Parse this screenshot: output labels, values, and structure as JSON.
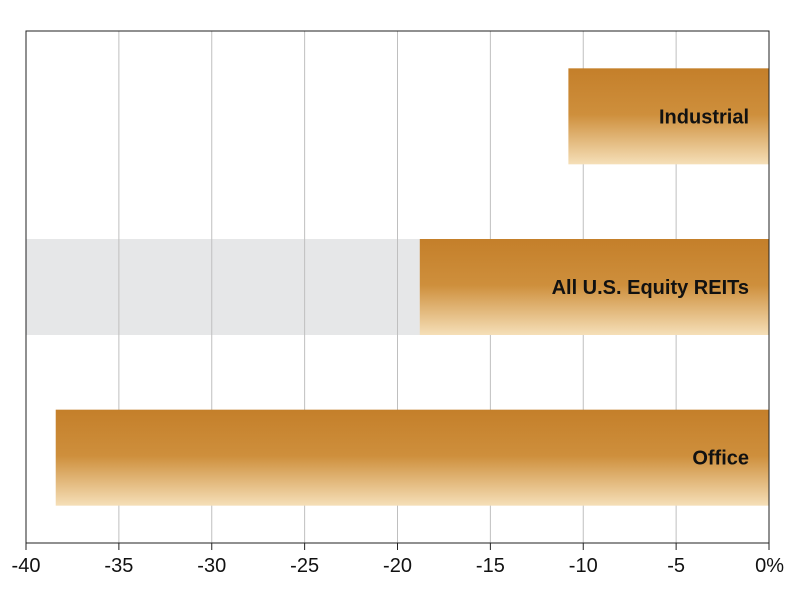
{
  "chart_data": {
    "type": "bar",
    "orientation": "horizontal",
    "categories": [
      "Industrial",
      "All U.S. Equity REITs",
      "Office"
    ],
    "values": [
      -10.8,
      -18.8,
      -38.4
    ],
    "highlighted_category": "All U.S. Equity REITs",
    "x_ticks": [
      "-40",
      "-35",
      "-30",
      "-25",
      "-20",
      "-15",
      "-10",
      "-5",
      "0%"
    ],
    "x_tick_values": [
      -40,
      -35,
      -30,
      -25,
      -20,
      -15,
      -10,
      -5,
      0
    ],
    "xlim": [
      -40,
      0
    ],
    "title": "",
    "xlabel": "",
    "ylabel": "",
    "grid": "vertical",
    "colors": {
      "bar_top": "#C47F2A",
      "bar_mid": "#CE8F3C",
      "bar_bottom": "#F5DFB8",
      "highlight_band": "#E6E7E8",
      "grid": "#BFBFBF",
      "axis": "#222222"
    }
  }
}
